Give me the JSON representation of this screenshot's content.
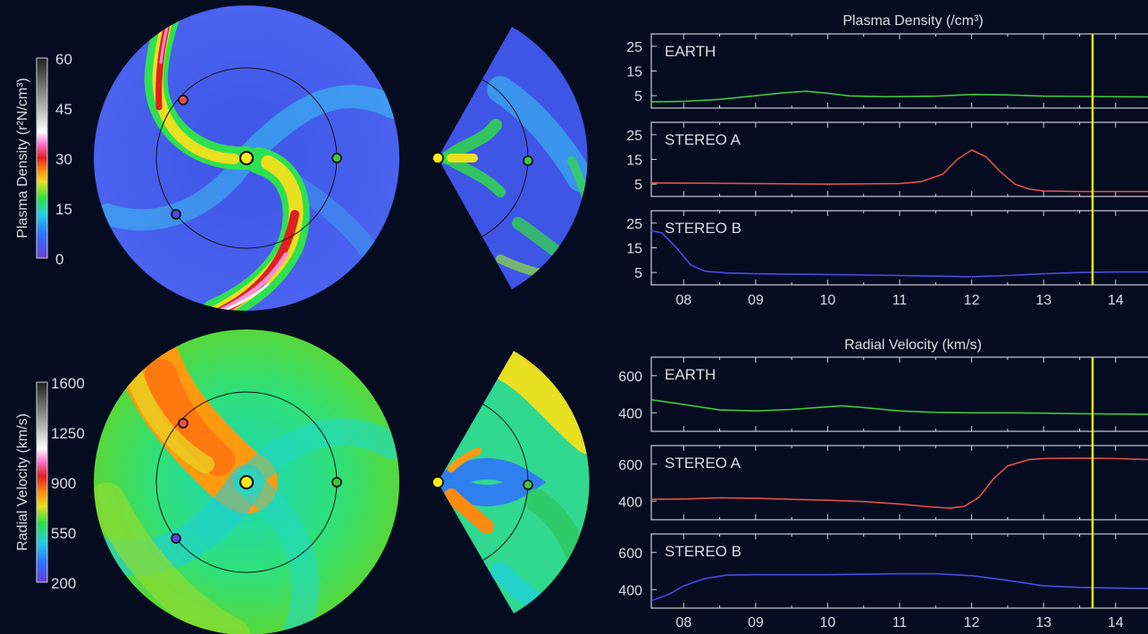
{
  "colors": {
    "background": "#050c20",
    "axis": "#c9ced8",
    "earth": "#3ec83e",
    "stereo_a": "#e0504a",
    "stereo_b": "#4a4ae6",
    "current_time_marker": "#f2ea1c",
    "sun": "#ffe81a"
  },
  "colorbars": [
    {
      "label": "Plasma Density (r²N/cm³)",
      "ticks": [
        "60",
        "45",
        "30",
        "15",
        "0"
      ]
    },
    {
      "label": "Radial Velocity (km/s)",
      "ticks": [
        "1600",
        "1250",
        "900",
        "550",
        "200"
      ]
    }
  ],
  "chart_data": [
    {
      "type": "line",
      "title": "Plasma Density (/cm³)",
      "x_ticks": [
        "08",
        "09",
        "10",
        "11",
        "12",
        "13",
        "14"
      ],
      "x_range": [
        7.55,
        14.45
      ],
      "current_time": 13.68,
      "panels": [
        {
          "name": "EARTH",
          "color_key": "earth",
          "y_ticks": [
            "25",
            "15",
            "5"
          ],
          "ylim": [
            0,
            30
          ],
          "x": [
            7.55,
            8.0,
            8.5,
            9.0,
            9.4,
            9.7,
            10.0,
            10.3,
            10.8,
            11.5,
            12.0,
            12.5,
            13.0,
            13.5,
            14.0,
            14.45
          ],
          "values": [
            2.5,
            2.7,
            3.5,
            5.0,
            6.2,
            6.8,
            6.0,
            4.9,
            4.6,
            4.8,
            5.5,
            5.3,
            4.8,
            4.7,
            4.6,
            4.5
          ]
        },
        {
          "name": "STEREO A",
          "color_key": "stereo_a",
          "y_ticks": [
            "25",
            "15",
            "5"
          ],
          "ylim": [
            0,
            30
          ],
          "x": [
            7.55,
            8.0,
            9.0,
            10.0,
            11.0,
            11.3,
            11.6,
            11.8,
            12.0,
            12.2,
            12.4,
            12.6,
            12.8,
            13.0,
            13.5,
            14.0,
            14.45
          ],
          "values": [
            5.5,
            5.4,
            5.2,
            5.0,
            5.2,
            6.0,
            9.0,
            15.0,
            18.8,
            16.0,
            10.0,
            5.0,
            3.0,
            2.2,
            2.0,
            2.0,
            2.0
          ]
        },
        {
          "name": "STEREO B",
          "color_key": "stereo_b",
          "y_ticks": [
            "25",
            "15",
            "5"
          ],
          "ylim": [
            0,
            30
          ],
          "x": [
            7.55,
            7.7,
            7.9,
            8.1,
            8.3,
            8.6,
            9.0,
            10.0,
            11.0,
            12.0,
            12.5,
            13.0,
            13.5,
            14.0,
            14.45
          ],
          "values": [
            22.0,
            21.0,
            15.0,
            8.0,
            5.5,
            4.8,
            4.5,
            4.2,
            3.8,
            3.3,
            3.8,
            4.5,
            5.0,
            5.2,
            5.2
          ]
        }
      ]
    },
    {
      "type": "line",
      "title": "Radial Velocity (km/s)",
      "x_ticks": [
        "08",
        "09",
        "10",
        "11",
        "12",
        "13",
        "14"
      ],
      "x_range": [
        7.55,
        14.45
      ],
      "current_time": 13.68,
      "panels": [
        {
          "name": "EARTH",
          "color_key": "earth",
          "y_ticks": [
            "600",
            "400"
          ],
          "ylim": [
            300,
            700
          ],
          "x": [
            7.55,
            8.0,
            8.5,
            9.0,
            9.5,
            10.0,
            10.2,
            10.5,
            11.0,
            11.5,
            12.0,
            12.5,
            13.0,
            13.5,
            14.0,
            14.45
          ],
          "values": [
            470,
            445,
            415,
            410,
            418,
            432,
            438,
            428,
            410,
            402,
            400,
            400,
            398,
            395,
            393,
            392
          ]
        },
        {
          "name": "STEREO A",
          "color_key": "stereo_a",
          "y_ticks": [
            "600",
            "400"
          ],
          "ylim": [
            300,
            700
          ],
          "x": [
            7.55,
            8.0,
            8.5,
            9.0,
            9.5,
            10.0,
            10.5,
            11.0,
            11.4,
            11.7,
            11.9,
            12.1,
            12.3,
            12.5,
            12.8,
            13.0,
            13.5,
            14.0,
            14.45
          ],
          "values": [
            410,
            412,
            418,
            415,
            410,
            405,
            398,
            385,
            370,
            362,
            372,
            420,
            520,
            590,
            625,
            630,
            632,
            630,
            625
          ]
        },
        {
          "name": "STEREO B",
          "color_key": "stereo_b",
          "y_ticks": [
            "600",
            "400"
          ],
          "ylim": [
            300,
            700
          ],
          "x": [
            7.55,
            7.8,
            8.0,
            8.3,
            8.6,
            9.0,
            10.0,
            11.0,
            11.5,
            12.0,
            12.5,
            13.0,
            13.5,
            14.0,
            14.45
          ],
          "values": [
            340,
            375,
            420,
            460,
            478,
            480,
            480,
            485,
            485,
            475,
            450,
            420,
            412,
            408,
            405
          ]
        }
      ]
    }
  ]
}
